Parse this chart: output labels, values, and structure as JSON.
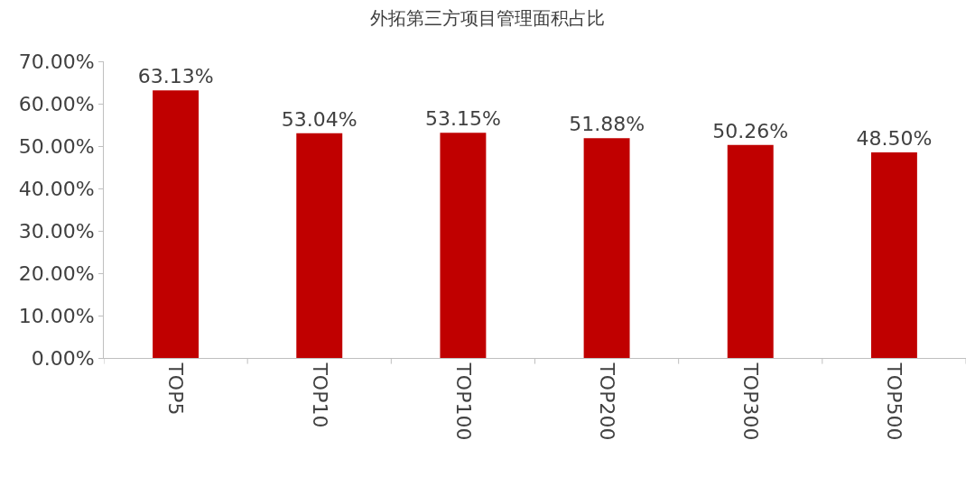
{
  "chart_data": {
    "type": "bar",
    "title": "外拓第三方项目管理面积占比",
    "categories": [
      "TOP5",
      "TOP10",
      "TOP100",
      "TOP200",
      "TOP300",
      "TOP500"
    ],
    "values": [
      63.13,
      53.04,
      53.15,
      51.88,
      50.26,
      48.5
    ],
    "value_labels": [
      "63.13%",
      "53.04%",
      "53.15%",
      "51.88%",
      "50.26%",
      "48.50%"
    ],
    "color": "#c00000",
    "ylim": [
      0,
      70
    ],
    "yticks": [
      {
        "value": 0,
        "label": "0.00%"
      },
      {
        "value": 10,
        "label": "10.00%"
      },
      {
        "value": 20,
        "label": "20.00%"
      },
      {
        "value": 30,
        "label": "30.00%"
      },
      {
        "value": 40,
        "label": "40.00%"
      },
      {
        "value": 50,
        "label": "50.00%"
      },
      {
        "value": 60,
        "label": "60.00%"
      },
      {
        "value": 70,
        "label": "70.00%"
      }
    ],
    "legend": false
  }
}
